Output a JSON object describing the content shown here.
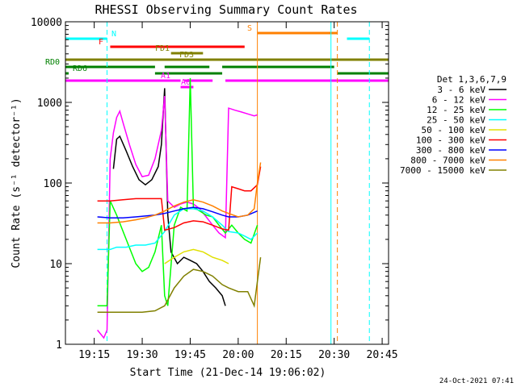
{
  "chart_data": {
    "type": "line",
    "title": "RHESSI Observing Summary Count Rates",
    "xlabel": "Start Time (21-Dec-14 19:06:02)",
    "ylabel": "Count Rate (s⁻¹ detector⁻¹)",
    "y_scale": "log",
    "x_range": [
      "19:06",
      "20:47"
    ],
    "y_range": [
      1,
      10000
    ],
    "x_ticks": [
      "19:15",
      "19:30",
      "19:45",
      "20:00",
      "20:15",
      "20:30",
      "20:45"
    ],
    "y_ticks": [
      "1",
      "10",
      "100",
      "1000",
      "10000"
    ],
    "legend_title": "Det 1,3,6,7,9",
    "legend_position": "right",
    "timestamp": "24-Oct-2021 07:41",
    "series": [
      {
        "name": "3 - 6 keV",
        "color": "#000000",
        "points": [
          [
            "19:21",
            150
          ],
          [
            "19:22",
            350
          ],
          [
            "19:23",
            380
          ],
          [
            "19:25",
            250
          ],
          [
            "19:27",
            160
          ],
          [
            "19:29",
            110
          ],
          [
            "19:31",
            95
          ],
          [
            "19:33",
            110
          ],
          [
            "19:35",
            160
          ],
          [
            "19:36",
            300
          ],
          [
            "19:37",
            1500
          ],
          [
            "19:38",
            40
          ],
          [
            "19:39",
            14
          ],
          [
            "19:41",
            10
          ],
          [
            "19:43",
            12
          ],
          [
            "19:45",
            11
          ],
          [
            "19:47",
            10
          ],
          [
            "19:49",
            8
          ],
          [
            "19:51",
            6
          ],
          [
            "19:53",
            5
          ],
          [
            "19:55",
            4
          ],
          [
            "19:56",
            3
          ]
        ]
      },
      {
        "name": "6 - 12 keV",
        "color": "#ff00ff",
        "points": [
          [
            "19:16",
            1.5
          ],
          [
            "19:18",
            1.2
          ],
          [
            "19:19",
            1.5
          ],
          [
            "19:20",
            200
          ],
          [
            "19:21",
            420
          ],
          [
            "19:22",
            650
          ],
          [
            "19:23",
            780
          ],
          [
            "19:24",
            560
          ],
          [
            "19:26",
            300
          ],
          [
            "19:28",
            170
          ],
          [
            "19:30",
            120
          ],
          [
            "19:32",
            125
          ],
          [
            "19:34",
            200
          ],
          [
            "19:36",
            450
          ],
          [
            "19:37",
            1200
          ],
          [
            "19:38",
            60
          ],
          [
            "19:40",
            50
          ],
          [
            "19:42",
            55
          ],
          [
            "19:44",
            58
          ],
          [
            "19:46",
            55
          ],
          [
            "19:48",
            48
          ],
          [
            "19:50",
            38
          ],
          [
            "19:52",
            30
          ],
          [
            "19:54",
            24
          ],
          [
            "19:56",
            21
          ],
          [
            "19:57",
            850
          ],
          [
            "19:59",
            800
          ],
          [
            "20:01",
            760
          ],
          [
            "20:03",
            720
          ],
          [
            "20:05",
            680
          ],
          [
            "20:06",
            700
          ]
        ]
      },
      {
        "name": "12 - 25 keV",
        "color": "#00ff00",
        "points": [
          [
            "19:16",
            3
          ],
          [
            "19:19",
            3
          ],
          [
            "19:20",
            60
          ],
          [
            "19:22",
            40
          ],
          [
            "19:25",
            20
          ],
          [
            "19:28",
            10
          ],
          [
            "19:30",
            8
          ],
          [
            "19:32",
            9
          ],
          [
            "19:34",
            14
          ],
          [
            "19:36",
            30
          ],
          [
            "19:37",
            4
          ],
          [
            "19:38",
            3
          ],
          [
            "19:40",
            30
          ],
          [
            "19:42",
            50
          ],
          [
            "19:44",
            45
          ],
          [
            "19:45",
            2000
          ],
          [
            "19:46",
            50
          ],
          [
            "19:48",
            45
          ],
          [
            "19:50",
            40
          ],
          [
            "19:52",
            38
          ],
          [
            "19:54",
            30
          ],
          [
            "19:56",
            24
          ],
          [
            "19:58",
            30
          ],
          [
            "20:00",
            24
          ],
          [
            "20:02",
            20
          ],
          [
            "20:04",
            18
          ],
          [
            "20:06",
            30
          ]
        ]
      },
      {
        "name": "25 - 50 keV",
        "color": "#00ffff",
        "points": [
          [
            "19:16",
            15
          ],
          [
            "19:18",
            15
          ],
          [
            "19:20",
            15
          ],
          [
            "19:22",
            16
          ],
          [
            "19:25",
            16
          ],
          [
            "19:28",
            17
          ],
          [
            "19:31",
            17
          ],
          [
            "19:34",
            18
          ],
          [
            "19:37",
            25
          ],
          [
            "19:40",
            40
          ],
          [
            "19:43",
            48
          ],
          [
            "19:46",
            48
          ],
          [
            "19:49",
            45
          ],
          [
            "19:52",
            38
          ],
          [
            "19:55",
            30
          ],
          [
            "19:57",
            25
          ],
          [
            "20:00",
            24
          ],
          [
            "20:02",
            22
          ],
          [
            "20:04",
            20
          ],
          [
            "20:06",
            24
          ]
        ]
      },
      {
        "name": "50 - 100 keV",
        "color": "#e0e000",
        "points": [
          [
            "19:37",
            10
          ],
          [
            "19:40",
            12
          ],
          [
            "19:43",
            14
          ],
          [
            "19:46",
            15
          ],
          [
            "19:49",
            14
          ],
          [
            "19:52",
            12
          ],
          [
            "19:55",
            11
          ],
          [
            "19:57",
            10
          ]
        ]
      },
      {
        "name": "100 - 300 keV",
        "color": "#ff0000",
        "points": [
          [
            "19:16",
            60
          ],
          [
            "19:20",
            60
          ],
          [
            "19:24",
            62
          ],
          [
            "19:28",
            64
          ],
          [
            "19:31",
            64
          ],
          [
            "19:34",
            64
          ],
          [
            "19:36",
            64
          ],
          [
            "19:37",
            26
          ],
          [
            "19:40",
            28
          ],
          [
            "19:43",
            32
          ],
          [
            "19:46",
            34
          ],
          [
            "19:49",
            33
          ],
          [
            "19:52",
            30
          ],
          [
            "19:55",
            27
          ],
          [
            "19:57",
            26
          ],
          [
            "19:58",
            90
          ],
          [
            "20:00",
            85
          ],
          [
            "20:02",
            80
          ],
          [
            "20:04",
            80
          ],
          [
            "20:06",
            95
          ],
          [
            "20:07",
            160
          ]
        ]
      },
      {
        "name": "300 - 800 keV",
        "color": "#0000ff",
        "points": [
          [
            "19:16",
            38
          ],
          [
            "19:20",
            37
          ],
          [
            "19:24",
            37
          ],
          [
            "19:28",
            38
          ],
          [
            "19:31",
            39
          ],
          [
            "19:34",
            40
          ],
          [
            "19:37",
            42
          ],
          [
            "19:40",
            45
          ],
          [
            "19:43",
            48
          ],
          [
            "19:46",
            50
          ],
          [
            "19:49",
            48
          ],
          [
            "19:52",
            44
          ],
          [
            "19:55",
            40
          ],
          [
            "19:57",
            38
          ],
          [
            "20:00",
            38
          ],
          [
            "20:03",
            40
          ],
          [
            "20:06",
            45
          ]
        ]
      },
      {
        "name": "800 - 7000 keV",
        "color": "#ff8000",
        "points": [
          [
            "19:16",
            32
          ],
          [
            "19:20",
            32
          ],
          [
            "19:24",
            33
          ],
          [
            "19:28",
            35
          ],
          [
            "19:31",
            37
          ],
          [
            "19:34",
            40
          ],
          [
            "19:37",
            45
          ],
          [
            "19:40",
            52
          ],
          [
            "19:43",
            58
          ],
          [
            "19:46",
            62
          ],
          [
            "19:49",
            58
          ],
          [
            "19:52",
            52
          ],
          [
            "19:55",
            45
          ],
          [
            "19:57",
            42
          ],
          [
            "20:00",
            38
          ],
          [
            "20:03",
            40
          ],
          [
            "20:05",
            48
          ],
          [
            "20:06",
            100
          ],
          [
            "20:07",
            180
          ]
        ]
      },
      {
        "name": "7000 - 15000 keV",
        "color": "#808000",
        "points": [
          [
            "19:16",
            2.5
          ],
          [
            "19:20",
            2.5
          ],
          [
            "19:25",
            2.5
          ],
          [
            "19:30",
            2.5
          ],
          [
            "19:34",
            2.6
          ],
          [
            "19:37",
            3
          ],
          [
            "19:40",
            5
          ],
          [
            "19:43",
            7
          ],
          [
            "19:46",
            8.5
          ],
          [
            "19:49",
            8
          ],
          [
            "19:52",
            7
          ],
          [
            "19:55",
            5.5
          ],
          [
            "19:57",
            5
          ],
          [
            "20:00",
            4.5
          ],
          [
            "20:03",
            4.5
          ],
          [
            "20:05",
            3
          ],
          [
            "20:06",
            6
          ],
          [
            "20:07",
            12
          ]
        ]
      }
    ],
    "flag_bars": [
      {
        "label": "N",
        "color": "#00ffff",
        "intervals": [
          [
            "19:06",
            "19:19"
          ],
          [
            "20:34",
            "20:41"
          ]
        ]
      },
      {
        "label": "F",
        "color": "#ff0000",
        "intervals": [
          [
            "19:20",
            "20:02"
          ]
        ]
      },
      {
        "label": "FD1",
        "color": "#808000",
        "intervals": [
          [
            "19:39",
            "19:49"
          ]
        ]
      },
      {
        "label": "FD3",
        "color": "#808000",
        "intervals": [
          [
            "19:06",
            "20:47"
          ]
        ]
      },
      {
        "label": "RD0",
        "color": "#008000",
        "intervals": [
          [
            "19:06",
            "19:34"
          ],
          [
            "19:37",
            "19:51"
          ],
          [
            "19:55",
            "20:30"
          ]
        ]
      },
      {
        "label": "RD6",
        "color": "#008000",
        "intervals": [
          [
            "19:06",
            "19:07"
          ],
          [
            "19:34",
            "19:55"
          ],
          [
            "20:31",
            "20:47"
          ]
        ]
      },
      {
        "label": "A1",
        "color": "#ff00ff",
        "intervals": [
          [
            "19:06",
            "19:42"
          ],
          [
            "19:43",
            "19:52"
          ],
          [
            "19:56",
            "20:47"
          ]
        ]
      },
      {
        "label": "A0",
        "color": "#ff00ff",
        "intervals": [
          [
            "19:42",
            "19:46"
          ]
        ]
      },
      {
        "label": "S",
        "color": "#ff8000",
        "intervals": [
          [
            "20:06",
            "20:31"
          ]
        ]
      }
    ],
    "vertical_markers": [
      {
        "time": "19:06",
        "color": "#00ffff",
        "style": "solid"
      },
      {
        "time": "19:19",
        "color": "#00ffff",
        "style": "dashed"
      },
      {
        "time": "20:06",
        "color": "#ff8000",
        "style": "solid"
      },
      {
        "time": "20:29",
        "color": "#00ffff",
        "style": "solid"
      },
      {
        "time": "20:31",
        "color": "#ff8000",
        "style": "dashed"
      },
      {
        "time": "20:41",
        "color": "#00ffff",
        "style": "dashed"
      }
    ]
  }
}
